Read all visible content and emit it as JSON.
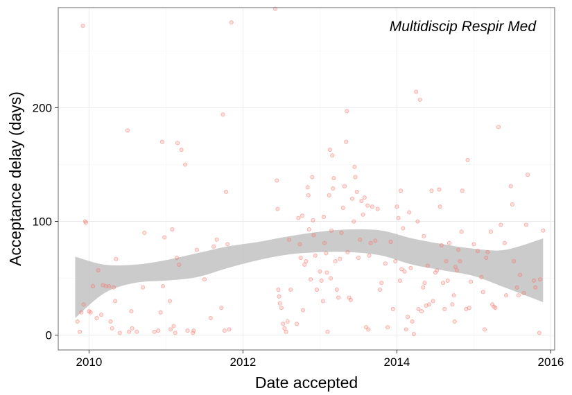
{
  "chart_data": {
    "type": "scatter",
    "title": "Multidiscip Respir Med",
    "xlabel": "Date accepted",
    "ylabel": "Acceptance delay (days)",
    "xlim": [
      2009.6,
      2016.05
    ],
    "ylim": [
      -13,
      288
    ],
    "x_ticks": [
      2010,
      2012,
      2014,
      2016
    ],
    "y_ticks": [
      0,
      100,
      200
    ],
    "grid": true,
    "point_color": "#f8766d",
    "ribbon_color": "#bdbdbd",
    "panel_border_color": "#7f7f7f",
    "grid_color": "#ebebeb",
    "smooth_band": {
      "x": [
        2009.82,
        2010.2,
        2010.6,
        2011.0,
        2011.4,
        2011.8,
        2012.2,
        2012.6,
        2013.0,
        2013.4,
        2013.8,
        2014.2,
        2014.6,
        2015.0,
        2015.4,
        2015.9
      ],
      "upper": [
        69,
        62,
        62,
        66,
        72,
        78,
        82,
        87,
        91,
        93,
        92,
        85,
        80,
        76,
        75,
        85
      ],
      "lower": [
        15,
        37,
        46,
        48,
        51,
        59,
        66,
        71,
        73,
        73,
        70,
        62,
        57,
        52,
        42,
        29
      ]
    },
    "points": [
      {
        "x": 2009.85,
        "y": 12
      },
      {
        "x": 2009.88,
        "y": 3
      },
      {
        "x": 2009.9,
        "y": 20
      },
      {
        "x": 2009.92,
        "y": 272
      },
      {
        "x": 2009.93,
        "y": 27
      },
      {
        "x": 2009.95,
        "y": 100
      },
      {
        "x": 2009.96,
        "y": 99
      },
      {
        "x": 2010.0,
        "y": 21
      },
      {
        "x": 2010.02,
        "y": 20
      },
      {
        "x": 2010.05,
        "y": 43
      },
      {
        "x": 2010.1,
        "y": 15
      },
      {
        "x": 2010.12,
        "y": 57
      },
      {
        "x": 2010.16,
        "y": 18
      },
      {
        "x": 2010.18,
        "y": 44
      },
      {
        "x": 2010.22,
        "y": 43
      },
      {
        "x": 2010.26,
        "y": 43
      },
      {
        "x": 2010.28,
        "y": 12
      },
      {
        "x": 2010.3,
        "y": 6
      },
      {
        "x": 2010.32,
        "y": 42
      },
      {
        "x": 2010.34,
        "y": 30
      },
      {
        "x": 2010.35,
        "y": 67
      },
      {
        "x": 2010.4,
        "y": 2
      },
      {
        "x": 2010.5,
        "y": 180
      },
      {
        "x": 2010.52,
        "y": 3
      },
      {
        "x": 2010.55,
        "y": 21
      },
      {
        "x": 2010.56,
        "y": 6
      },
      {
        "x": 2010.62,
        "y": 3
      },
      {
        "x": 2010.7,
        "y": 42
      },
      {
        "x": 2010.72,
        "y": 90
      },
      {
        "x": 2010.85,
        "y": 3
      },
      {
        "x": 2010.9,
        "y": 4
      },
      {
        "x": 2010.93,
        "y": 20
      },
      {
        "x": 2010.95,
        "y": 170
      },
      {
        "x": 2010.96,
        "y": 43
      },
      {
        "x": 2010.98,
        "y": 86
      },
      {
        "x": 2011.05,
        "y": 30
      },
      {
        "x": 2011.06,
        "y": 5
      },
      {
        "x": 2011.08,
        "y": 93
      },
      {
        "x": 2011.1,
        "y": 8
      },
      {
        "x": 2011.12,
        "y": 2
      },
      {
        "x": 2011.14,
        "y": 68
      },
      {
        "x": 2011.15,
        "y": 169
      },
      {
        "x": 2011.17,
        "y": 62
      },
      {
        "x": 2011.2,
        "y": 163
      },
      {
        "x": 2011.25,
        "y": 150
      },
      {
        "x": 2011.28,
        "y": 4
      },
      {
        "x": 2011.35,
        "y": 2
      },
      {
        "x": 2011.36,
        "y": 4
      },
      {
        "x": 2011.4,
        "y": 75
      },
      {
        "x": 2011.5,
        "y": 49
      },
      {
        "x": 2011.58,
        "y": 15
      },
      {
        "x": 2011.62,
        "y": 78
      },
      {
        "x": 2011.66,
        "y": 84
      },
      {
        "x": 2011.72,
        "y": 24
      },
      {
        "x": 2011.74,
        "y": 194
      },
      {
        "x": 2011.76,
        "y": 4
      },
      {
        "x": 2011.78,
        "y": 126
      },
      {
        "x": 2011.8,
        "y": 80
      },
      {
        "x": 2011.82,
        "y": 5
      },
      {
        "x": 2011.85,
        "y": 275
      },
      {
        "x": 2012.42,
        "y": 287
      },
      {
        "x": 2012.44,
        "y": 136
      },
      {
        "x": 2012.45,
        "y": 111
      },
      {
        "x": 2012.46,
        "y": 40
      },
      {
        "x": 2012.47,
        "y": 34
      },
      {
        "x": 2012.48,
        "y": 28
      },
      {
        "x": 2012.5,
        "y": 24
      },
      {
        "x": 2012.52,
        "y": 10
      },
      {
        "x": 2012.54,
        "y": 6
      },
      {
        "x": 2012.56,
        "y": 3
      },
      {
        "x": 2012.58,
        "y": 12
      },
      {
        "x": 2012.6,
        "y": 84
      },
      {
        "x": 2012.62,
        "y": 40
      },
      {
        "x": 2012.7,
        "y": 10
      },
      {
        "x": 2012.72,
        "y": 103
      },
      {
        "x": 2012.74,
        "y": 80
      },
      {
        "x": 2012.75,
        "y": 68
      },
      {
        "x": 2012.77,
        "y": 105
      },
      {
        "x": 2012.78,
        "y": 22
      },
      {
        "x": 2012.8,
        "y": 62
      },
      {
        "x": 2012.82,
        "y": 65
      },
      {
        "x": 2012.84,
        "y": 130
      },
      {
        "x": 2012.85,
        "y": 123
      },
      {
        "x": 2012.86,
        "y": 93
      },
      {
        "x": 2012.88,
        "y": 49
      },
      {
        "x": 2012.9,
        "y": 139
      },
      {
        "x": 2012.91,
        "y": 101
      },
      {
        "x": 2012.92,
        "y": 88
      },
      {
        "x": 2012.94,
        "y": 70
      },
      {
        "x": 2012.96,
        "y": 40
      },
      {
        "x": 2013.0,
        "y": 56
      },
      {
        "x": 2013.02,
        "y": 48
      },
      {
        "x": 2013.04,
        "y": 30
      },
      {
        "x": 2013.05,
        "y": 104
      },
      {
        "x": 2013.06,
        "y": 81
      },
      {
        "x": 2013.08,
        "y": 72
      },
      {
        "x": 2013.09,
        "y": 55
      },
      {
        "x": 2013.1,
        "y": 3
      },
      {
        "x": 2013.12,
        "y": 123
      },
      {
        "x": 2013.13,
        "y": 163
      },
      {
        "x": 2013.14,
        "y": 50
      },
      {
        "x": 2013.15,
        "y": 92
      },
      {
        "x": 2013.16,
        "y": 158
      },
      {
        "x": 2013.17,
        "y": 129
      },
      {
        "x": 2013.18,
        "y": 138
      },
      {
        "x": 2013.2,
        "y": 65
      },
      {
        "x": 2013.22,
        "y": 40
      },
      {
        "x": 2013.24,
        "y": 33
      },
      {
        "x": 2013.26,
        "y": 67
      },
      {
        "x": 2013.28,
        "y": 90
      },
      {
        "x": 2013.3,
        "y": 112
      },
      {
        "x": 2013.32,
        "y": 131
      },
      {
        "x": 2013.34,
        "y": 170
      },
      {
        "x": 2013.35,
        "y": 197
      },
      {
        "x": 2013.36,
        "y": 73
      },
      {
        "x": 2013.38,
        "y": 33
      },
      {
        "x": 2013.4,
        "y": 31
      },
      {
        "x": 2013.42,
        "y": 120
      },
      {
        "x": 2013.44,
        "y": 100
      },
      {
        "x": 2013.45,
        "y": 148
      },
      {
        "x": 2013.46,
        "y": 139
      },
      {
        "x": 2013.48,
        "y": 126
      },
      {
        "x": 2013.5,
        "y": 68
      },
      {
        "x": 2013.52,
        "y": 84
      },
      {
        "x": 2013.54,
        "y": 118
      },
      {
        "x": 2013.56,
        "y": 106
      },
      {
        "x": 2013.58,
        "y": 121
      },
      {
        "x": 2013.6,
        "y": 7
      },
      {
        "x": 2013.62,
        "y": 114
      },
      {
        "x": 2013.63,
        "y": 5
      },
      {
        "x": 2013.64,
        "y": 70
      },
      {
        "x": 2013.66,
        "y": 81
      },
      {
        "x": 2013.68,
        "y": 113
      },
      {
        "x": 2013.72,
        "y": 83
      },
      {
        "x": 2013.75,
        "y": 111
      },
      {
        "x": 2013.78,
        "y": 40
      },
      {
        "x": 2013.8,
        "y": 46
      },
      {
        "x": 2013.85,
        "y": 63
      },
      {
        "x": 2013.88,
        "y": 7
      },
      {
        "x": 2013.92,
        "y": 82
      },
      {
        "x": 2013.95,
        "y": 23
      },
      {
        "x": 2013.98,
        "y": 65
      },
      {
        "x": 2014.0,
        "y": 113
      },
      {
        "x": 2014.02,
        "y": 103
      },
      {
        "x": 2014.04,
        "y": 48
      },
      {
        "x": 2014.05,
        "y": 127
      },
      {
        "x": 2014.06,
        "y": 58
      },
      {
        "x": 2014.08,
        "y": 94
      },
      {
        "x": 2014.1,
        "y": 56
      },
      {
        "x": 2014.12,
        "y": 5
      },
      {
        "x": 2014.14,
        "y": 16
      },
      {
        "x": 2014.16,
        "y": 108
      },
      {
        "x": 2014.18,
        "y": 59
      },
      {
        "x": 2014.2,
        "y": 12
      },
      {
        "x": 2014.22,
        "y": 1
      },
      {
        "x": 2014.25,
        "y": 214
      },
      {
        "x": 2014.27,
        "y": 100
      },
      {
        "x": 2014.28,
        "y": 23
      },
      {
        "x": 2014.3,
        "y": 207
      },
      {
        "x": 2014.32,
        "y": 21
      },
      {
        "x": 2014.34,
        "y": 42
      },
      {
        "x": 2014.35,
        "y": 87
      },
      {
        "x": 2014.36,
        "y": 46
      },
      {
        "x": 2014.38,
        "y": 26
      },
      {
        "x": 2014.4,
        "y": 61
      },
      {
        "x": 2014.42,
        "y": 27
      },
      {
        "x": 2014.45,
        "y": 127
      },
      {
        "x": 2014.47,
        "y": 30
      },
      {
        "x": 2014.5,
        "y": 55
      },
      {
        "x": 2014.52,
        "y": 57
      },
      {
        "x": 2014.55,
        "y": 128
      },
      {
        "x": 2014.56,
        "y": 113
      },
      {
        "x": 2014.58,
        "y": 79
      },
      {
        "x": 2014.6,
        "y": 46
      },
      {
        "x": 2014.62,
        "y": 23
      },
      {
        "x": 2014.64,
        "y": 65
      },
      {
        "x": 2014.66,
        "y": 48
      },
      {
        "x": 2014.68,
        "y": 81
      },
      {
        "x": 2014.72,
        "y": 27
      },
      {
        "x": 2014.74,
        "y": 35
      },
      {
        "x": 2014.75,
        "y": 12
      },
      {
        "x": 2014.76,
        "y": 60
      },
      {
        "x": 2014.78,
        "y": 57
      },
      {
        "x": 2014.8,
        "y": 75
      },
      {
        "x": 2014.82,
        "y": 65
      },
      {
        "x": 2014.84,
        "y": 91
      },
      {
        "x": 2014.85,
        "y": 127
      },
      {
        "x": 2014.9,
        "y": 23
      },
      {
        "x": 2014.92,
        "y": 154
      },
      {
        "x": 2014.94,
        "y": 24
      },
      {
        "x": 2014.96,
        "y": 47
      },
      {
        "x": 2015.0,
        "y": 80
      },
      {
        "x": 2015.05,
        "y": 74
      },
      {
        "x": 2015.1,
        "y": 51
      },
      {
        "x": 2015.12,
        "y": 38
      },
      {
        "x": 2015.14,
        "y": 5
      },
      {
        "x": 2015.16,
        "y": 68
      },
      {
        "x": 2015.18,
        "y": 73
      },
      {
        "x": 2015.22,
        "y": 91
      },
      {
        "x": 2015.24,
        "y": 27
      },
      {
        "x": 2015.26,
        "y": 25
      },
      {
        "x": 2015.28,
        "y": 24
      },
      {
        "x": 2015.32,
        "y": 183
      },
      {
        "x": 2015.35,
        "y": 97
      },
      {
        "x": 2015.4,
        "y": 81
      },
      {
        "x": 2015.42,
        "y": 35
      },
      {
        "x": 2015.48,
        "y": 131
      },
      {
        "x": 2015.5,
        "y": 115
      },
      {
        "x": 2015.52,
        "y": 65
      },
      {
        "x": 2015.56,
        "y": 42
      },
      {
        "x": 2015.58,
        "y": 35
      },
      {
        "x": 2015.6,
        "y": 53
      },
      {
        "x": 2015.65,
        "y": 37
      },
      {
        "x": 2015.68,
        "y": 97
      },
      {
        "x": 2015.7,
        "y": 141
      },
      {
        "x": 2015.78,
        "y": 48
      },
      {
        "x": 2015.8,
        "y": 42
      },
      {
        "x": 2015.85,
        "y": 2
      },
      {
        "x": 2015.86,
        "y": 49
      },
      {
        "x": 2015.9,
        "y": 92
      }
    ]
  }
}
